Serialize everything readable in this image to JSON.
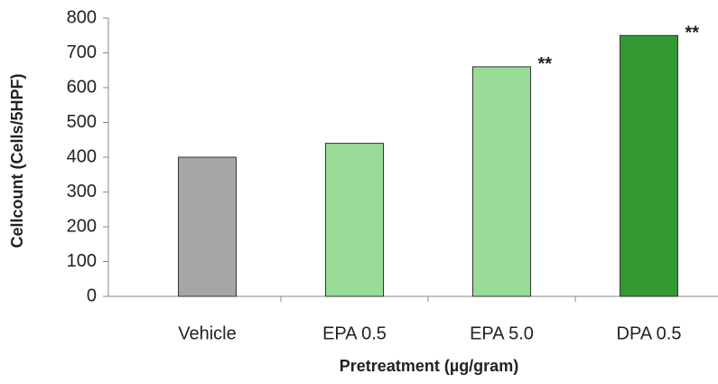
{
  "chart_data": {
    "type": "bar",
    "categories": [
      "Vehicle",
      "EPA 0.5",
      "EPA 5.0",
      "DPA 0.5"
    ],
    "values": [
      400,
      440,
      660,
      750
    ],
    "colors": [
      "#a6a6a6",
      "#98dc98",
      "#98dc98",
      "#339933"
    ],
    "annotations": [
      null,
      null,
      "**",
      "**"
    ],
    "y_label": "Cellcount  (Cells/5HPF)",
    "x_label": "Pretreatment (µg/gram)",
    "ylim": [
      0,
      800
    ],
    "yticks": [
      0,
      100,
      200,
      300,
      400,
      500,
      600,
      700,
      800
    ],
    "grid": false
  }
}
